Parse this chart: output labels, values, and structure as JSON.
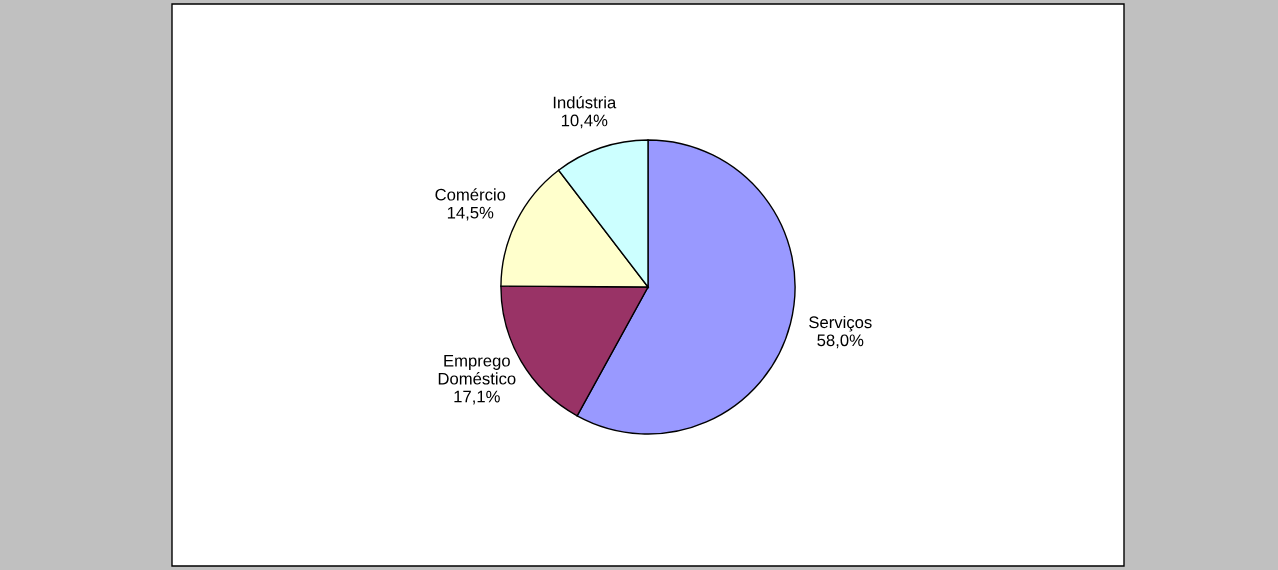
{
  "chart_data": {
    "type": "pie",
    "categories": [
      "Serviços",
      "Emprego\nDoméstico",
      "Comércio",
      "Indústria"
    ],
    "values": [
      58.0,
      17.1,
      14.5,
      10.4
    ],
    "value_labels": [
      "58,0%",
      "17,1%",
      "14,5%",
      "10,4%"
    ],
    "colors": [
      "#9999ff",
      "#993366",
      "#ffffcc",
      "#ccffff"
    ]
  }
}
